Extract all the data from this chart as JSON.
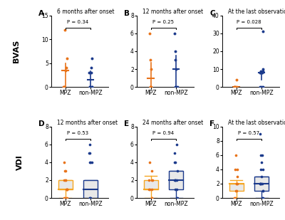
{
  "panels": [
    {
      "label": "A",
      "title": "6 months after onset",
      "pvalue": "P = 0.34",
      "ylim": [
        0,
        15
      ],
      "yticks": [
        0,
        5,
        10,
        15
      ],
      "row": 0,
      "col": 0,
      "mpz_points": [
        12,
        6,
        4,
        3.5,
        0,
        0,
        0
      ],
      "nonmpz_points": [
        6,
        4,
        3,
        3,
        0,
        0,
        0,
        0
      ],
      "style": "scatter"
    },
    {
      "label": "B",
      "title": "12 months after onset",
      "pvalue": "P = 0.25",
      "ylim": [
        0,
        8
      ],
      "yticks": [
        0,
        2,
        4,
        6,
        8
      ],
      "row": 0,
      "col": 1,
      "mpz_points": [
        6,
        3,
        2,
        0,
        0,
        0
      ],
      "nonmpz_points": [
        6,
        4,
        3,
        2,
        0,
        0,
        0
      ],
      "style": "scatter"
    },
    {
      "label": "C",
      "title": "At the last observation",
      "pvalue": "P = 0.028",
      "ylim": [
        0,
        40
      ],
      "yticks": [
        0,
        10,
        20,
        30,
        40
      ],
      "row": 0,
      "col": 2,
      "mpz_points": [
        4,
        0,
        0,
        0,
        0
      ],
      "nonmpz_points": [
        31,
        10,
        9,
        9,
        8,
        8,
        8,
        8,
        0,
        0,
        0
      ],
      "style": "scatter"
    },
    {
      "label": "D",
      "title": "12 months after onset",
      "pvalue": "P = 0.53",
      "ylim": [
        0,
        8
      ],
      "yticks": [
        0,
        2,
        4,
        6,
        8
      ],
      "row": 1,
      "col": 0,
      "mpz_points": [
        4,
        3,
        3,
        2,
        2,
        2,
        1,
        1,
        1,
        1,
        0,
        0,
        0
      ],
      "nonmpz_points": [
        6,
        5,
        5,
        4,
        4,
        4,
        0,
        0,
        0
      ],
      "mpz_box": {
        "q1": 1,
        "med": 1,
        "q3": 2,
        "whislo": 0,
        "whishi": 2
      },
      "nonmpz_box": {
        "q1": 0,
        "med": 1,
        "q3": 2,
        "whislo": 0,
        "whishi": 2
      },
      "style": "box"
    },
    {
      "label": "E",
      "title": "24 months after onset",
      "pvalue": "P = 0.94",
      "ylim": [
        0,
        8
      ],
      "yticks": [
        0,
        2,
        4,
        6,
        8
      ],
      "row": 1,
      "col": 1,
      "mpz_points": [
        4,
        3,
        2,
        2,
        2,
        1,
        1,
        1,
        0,
        0
      ],
      "nonmpz_points": [
        6,
        5,
        4,
        4,
        3,
        2,
        2,
        2,
        2,
        1,
        1,
        0,
        0
      ],
      "mpz_box": {
        "q1": 1,
        "med": 1,
        "q3": 2,
        "whislo": 0,
        "whishi": 2.5
      },
      "nonmpz_box": {
        "q1": 1,
        "med": 2,
        "q3": 3,
        "whislo": 0,
        "whishi": 3
      },
      "style": "box"
    },
    {
      "label": "F",
      "title": "At the last observation",
      "pvalue": "P = 0.57",
      "ylim": [
        0,
        10
      ],
      "yticks": [
        0,
        2,
        4,
        6,
        8,
        10
      ],
      "row": 1,
      "col": 2,
      "mpz_points": [
        6,
        4,
        4,
        3,
        2,
        2,
        2,
        1,
        1,
        0,
        0
      ],
      "nonmpz_points": [
        9,
        6,
        6,
        5,
        4,
        4,
        3,
        2,
        2,
        2,
        2,
        2,
        1,
        1,
        0,
        0
      ],
      "mpz_box": {
        "q1": 1,
        "med": 2,
        "q3": 2,
        "whislo": 0,
        "whishi": 2.5
      },
      "nonmpz_box": {
        "q1": 1,
        "med": 2,
        "q3": 3,
        "whislo": 0,
        "whishi": 3
      },
      "style": "box"
    }
  ],
  "orange_color": "#F5A623",
  "blue_color": "#1B3A8C",
  "orange_dot": "#E8731A",
  "blue_dot": "#1B3A8C",
  "box_face": "#E8E8E8",
  "row_labels": [
    "BVAS",
    "VDI"
  ],
  "bg_color": "#FFFFFF"
}
